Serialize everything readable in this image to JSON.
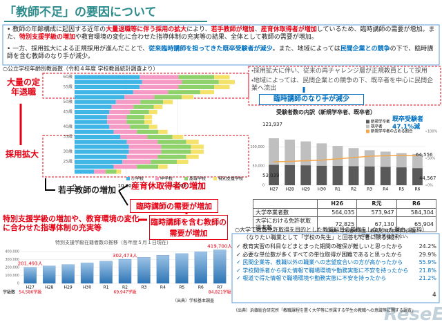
{
  "header": {
    "title": "「教師不足」の要因について",
    "watermark": "ReseEd",
    "page": "4"
  },
  "summary": [
    [
      {
        "text": "教師の年齢構成に起因する近年の"
      },
      {
        "text": "大量退職等に伴う採用の拡大",
        "color": "#e60012"
      },
      {
        "text": "により、"
      },
      {
        "text": "若手教師が増加",
        "color": "#e60012"
      },
      {
        "text": "、"
      },
      {
        "text": "産育休取得者が増加",
        "color": "#e60012"
      },
      {
        "text": "しているため、臨時講師の需要が増加。また、"
      },
      {
        "text": "特別支援学級の増加",
        "color": "#e60012"
      },
      {
        "text": "や教育環境の変化に合わせた指導体制の充実等の結果、全体として教師の需要が増加。"
      }
    ],
    [
      {
        "text": "一方、採用拡大による正規採用が進んだことで、"
      },
      {
        "text": "従来臨時講師を担ってきた既卒受験者が減少",
        "color": "#0070c0"
      },
      {
        "text": "。また、地域によっては"
      },
      {
        "text": "民間企業との競争",
        "color": "#0070c0"
      },
      {
        "text": "の下で、臨時講師を含む教師のなり手が減少。"
      }
    ]
  ],
  "callouts": {
    "retire": "大量の定年退職",
    "expand": "採用拡大",
    "young": "若手教師の増加",
    "leave": "産育休取得者の増加",
    "temp_demand": "臨時講師の需要が増加",
    "special": "特別支援学級の増加や、教育環境の変化に合わせた指導体制の充実等",
    "total_demand": "臨時講師を含む教師の需要が増加",
    "right_1": "・採用拡大に伴い、従来の再チャレンジ層が正規教員として採用",
    "right_2": "・地域によっては、民間企業との競争の下、既卒者を中心に民間企業へ流出",
    "supply": "臨時講師のなり手が減少"
  },
  "chart_data": [
    {
      "type": "hbar",
      "stacked": true,
      "title": "○公立学校年齢別教員数（令和４年度 学校教員統計調査より）",
      "categories": [
        "60歳",
        null,
        "55歳",
        null,
        null,
        "50歳",
        null,
        "45歳",
        null,
        null,
        "40歳",
        null,
        "35歳",
        null,
        null,
        "30歳",
        null,
        "25歳",
        null,
        null
      ],
      "series": [
        {
          "name": "小学校",
          "color": "#41b6e6",
          "values": [
            12600,
            13020,
            12600,
            11340,
            9660,
            7980,
            7140,
            6720,
            6300,
            6300,
            6720,
            7560,
            8820,
            10080,
            10500,
            10500,
            10080,
            9240,
            7560,
            3780
          ]
        },
        {
          "name": "中学校",
          "color": "#f59ac4",
          "values": [
            7500,
            7750,
            7500,
            6750,
            5750,
            4750,
            4250,
            4000,
            3750,
            3750,
            4000,
            4500,
            5250,
            6000,
            6250,
            6250,
            6000,
            5500,
            4500,
            2250
          ]
        },
        {
          "name": "高等学校",
          "color": "#8fd16a",
          "values": [
            6900,
            7130,
            6900,
            6210,
            5290,
            4370,
            3910,
            3680,
            3450,
            3450,
            3680,
            4140,
            4830,
            5520,
            5750,
            5750,
            5520,
            5060,
            4140,
            2070
          ]
        },
        {
          "name": "特別支援学校",
          "color": "#f5e26b",
          "values": [
            3000,
            3100,
            3000,
            2700,
            2300,
            1900,
            1700,
            1600,
            1500,
            1500,
            1600,
            1800,
            2100,
            2400,
            2500,
            2500,
            2400,
            2200,
            1800,
            900
          ]
        }
      ],
      "xlim": [
        0,
        33000
      ],
      "xticks": [
        0,
        {
          "value": 10000,
          "label": "10,000"
        },
        {
          "value": 20000,
          "label": "20,000"
        }
      ]
    },
    {
      "type": "bar",
      "stacked": true,
      "title": "受験者数の内訳（新規学卒者、既卒者）",
      "categories": [
        "H27",
        "H28",
        "H29",
        "H30",
        "R1",
        "R2",
        "R3",
        "R4",
        "R5",
        "R6"
      ],
      "series": [
        {
          "name": "新規学卒者",
          "color": "#595959",
          "values": [
            53039,
            52500,
            51800,
            50800,
            50200,
            49500,
            49000,
            47800,
            46500,
            44567
          ]
        },
        {
          "name": "既卒者",
          "color": "#bfbfbf",
          "values": [
            68898,
            66000,
            62000,
            58000,
            52000,
            47000,
            42000,
            39500,
            37000,
            36447
          ]
        },
        {
          "name": "新規学卒者の占める割合",
          "color": "#f4a64a",
          "axis": "y2",
          "values": [
            43.5,
            44.3,
            45.5,
            46.7,
            49.1,
            51.3,
            53.8,
            54.7,
            55.7,
            55.0
          ]
        }
      ],
      "ylim": [
        0,
        140000
      ],
      "yticks": [
        0,
        {
          "value": 50000,
          "label": "50,000"
        },
        {
          "value": 100000,
          "label": "100,000"
        }
      ],
      "y2lim": [
        0,
        100
      ],
      "y2ticks": [
        {
          "value": 0,
          "label": "0%"
        },
        {
          "value": 50,
          "label": "50%"
        },
        {
          "value": 100,
          "label": "100%"
        }
      ],
      "annotations": [
        "121,937",
        "53,039",
        "64,556",
        "44,567",
        "既卒受験者",
        "47.1%減"
      ]
    },
    {
      "type": "bar",
      "title": "特別支援学級在籍者数の推移（各年度５月１日現在）",
      "categories": [
        "H27",
        "H28",
        "H29",
        "H30",
        "R1",
        "R2",
        "R3",
        "R4",
        "R5",
        "R6",
        "R7"
      ],
      "values": [
        201493,
        218000,
        236000,
        256000,
        278000,
        302473,
        326000,
        353000,
        373000,
        395000,
        419700
      ],
      "value_labels": [
        "201,493人",
        null,
        null,
        null,
        null,
        "302,473人",
        null,
        null,
        null,
        null,
        "419,700人"
      ],
      "color": "#4f81bd",
      "class_title": "学級数",
      "class_labels": [
        "54,586学級",
        null,
        null,
        null,
        null,
        "69,947学級",
        null,
        null,
        null,
        null,
        "84,821学級"
      ],
      "ylim": [
        0,
        450000
      ],
      "yticks": [
        0,
        {
          "value": 100000,
          "label": "100,000"
        },
        {
          "value": 200000,
          "label": "200,000"
        },
        {
          "value": 300000,
          "label": "300,000"
        },
        {
          "value": 400000,
          "label": "400,000"
        }
      ],
      "source": "（出典）学校基本調査"
    }
  ],
  "table": {
    "header": [
      "",
      "H26",
      "R元",
      "R6"
    ],
    "rows": [
      [
        "大学卒業者数",
        "564,035",
        "573,947",
        "584,304"
      ],
      [
        "大学における免許状取得者数",
        "72,825",
        "67,130",
        "65,904"
      ]
    ],
    "notes": [
      "（出典）学校基本調査、教員免許状取得状況調査",
      "※大学等：短大等は含まない。"
    ]
  },
  "survey": {
    "title": "○大学で教員免許取得を目的とした教職科目の履修をしなかった理由（抜粋）",
    "subtitle": "（なりたい職業として「学校の先生」と回答した者に限る集計）",
    "items": [
      {
        "text": "✓ 教育実習の科目などまとまった期間の確保が難しいと思ったから",
        "pct": "24.2%",
        "color": "#222222"
      },
      {
        "text": "✓ 必要な単位数が多くすべての単位取得が困難であると思ったから",
        "pct": "29.9%",
        "color": "#222222"
      },
      {
        "text": "✓ 民間企業等、教職以外の職業への志望度合いの方が高かったから",
        "pct": "55.9%",
        "color": "#0070c0"
      },
      {
        "text": "✓ 学校関係者から得た情報で職場環境や勤務実態に不安を持ったから",
        "pct": "21.8%",
        "color": "#0070c0"
      },
      {
        "text": "✓ 報道で得た情報で職場環境や勤務実態に不安を持ったから",
        "pct": "21.2%",
        "color": "#0070c0"
      }
    ],
    "source": "（出典）浜銀総合研究所「教職課程を置く大学等に所属する学生の教職への意識等に関する調査」"
  }
}
